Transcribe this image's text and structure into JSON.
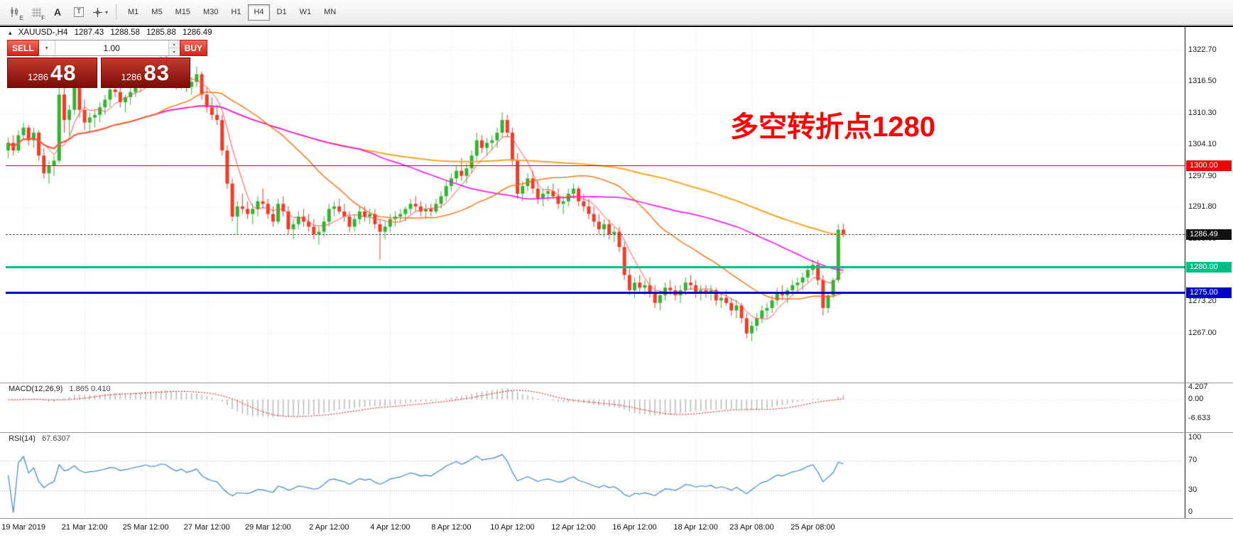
{
  "toolbar": {
    "icons": [
      "candlestick-chart",
      "grid",
      "text-annotation",
      "text-box",
      "crosshair-tool"
    ],
    "icon_labels": {
      "chart_sub": "E",
      "grid_sub": "F",
      "text_tool": "A",
      "textbox_tool": "T"
    },
    "timeframes": [
      "M1",
      "M5",
      "M15",
      "M30",
      "H1",
      "H4",
      "D1",
      "W1",
      "MN"
    ],
    "active_timeframe": "H4"
  },
  "glyphs": {
    "collapse_arrow": "▴",
    "dropdown_caret": "▾",
    "spin_up": "▴",
    "spin_down": "▾"
  },
  "chart_header": {
    "symbol": "XAUUSD-,H4",
    "open": "1287.43",
    "high": "1288.58",
    "low": "1285.88",
    "close": "1286.49"
  },
  "trade_panel": {
    "sell_label": "SELL",
    "buy_label": "BUY",
    "volume": "1.00",
    "sell_price": {
      "main": "1286",
      "pips": "48"
    },
    "buy_price": {
      "main": "1286",
      "pips": "83"
    }
  },
  "annotation": {
    "text": "多空转折点1280",
    "color": "#ff0000"
  },
  "price_axis": {
    "ticks": [
      "1322.70",
      "1316.50",
      "1310.30",
      "1304.10",
      "1297.90",
      "1291.80",
      "1285.60",
      "1279.40",
      "1273.20",
      "1267.00"
    ]
  },
  "current_price": {
    "label": "1286.49",
    "value": 1286.49
  },
  "hlines": [
    {
      "label": "1300.00",
      "value": 1300.0,
      "color": "#f00000",
      "thickness": 1,
      "markers": false
    },
    {
      "label": "1280.00",
      "value": 1280.0,
      "color": "#00bd87",
      "thickness": 3,
      "markers": true
    },
    {
      "label": "1275.00",
      "value": 1275.0,
      "color": "#0000c8",
      "thickness": 3,
      "markers": true
    }
  ],
  "time_axis": {
    "labels": [
      {
        "text": "19 Mar 2019",
        "bar": 3
      },
      {
        "text": "21 Mar 12:00",
        "bar": 15
      },
      {
        "text": "25 Mar 12:00",
        "bar": 27
      },
      {
        "text": "27 Mar 12:00",
        "bar": 39
      },
      {
        "text": "29 Mar 12:00",
        "bar": 51
      },
      {
        "text": "2 Apr 12:00",
        "bar": 63
      },
      {
        "text": "4 Apr 12:00",
        "bar": 75
      },
      {
        "text": "8 Apr 12:00",
        "bar": 87
      },
      {
        "text": "10 Apr 12:00",
        "bar": 99
      },
      {
        "text": "12 Apr 12:00",
        "bar": 111
      },
      {
        "text": "16 Apr 12:00",
        "bar": 123
      },
      {
        "text": "18 Apr 12:00",
        "bar": 135
      },
      {
        "text": "23 Apr 08:00",
        "bar": 146
      },
      {
        "text": "25 Apr 08:00",
        "bar": 158
      }
    ]
  },
  "macd_panel": {
    "name": "MACD(12,26,9)",
    "values": "1.865 0.410",
    "axis": [
      "4.207",
      "0.00",
      "-6.633"
    ]
  },
  "rsi_panel": {
    "name": "RSI(14)",
    "value": "67.6307",
    "axis": [
      "100",
      "70",
      "30",
      "0"
    ],
    "levels": [
      70,
      30
    ]
  },
  "chart_data": {
    "type": "candlestick",
    "symbol": "XAUUSD-",
    "timeframe": "H4",
    "title": "XAUUSD- H4 candlestick chart with MACD(12,26,9) and RSI(14)",
    "y_axis": {
      "min": 1258,
      "max": 1327,
      "tick_step": 6.2
    },
    "colors": {
      "up": "#32b332",
      "down": "#f23b28"
    },
    "overlays": [
      {
        "name": "ma-slowest",
        "type": "sma",
        "period": 120,
        "color": "#f5a623",
        "width": 2
      },
      {
        "name": "ma-slow",
        "type": "sma",
        "period": 60,
        "color": "#ff00ff",
        "width": 1.5
      },
      {
        "name": "ma-mid",
        "type": "sma",
        "period": 30,
        "color": "#ff6600",
        "width": 1.3
      },
      {
        "name": "ma-fast",
        "type": "sma",
        "period": 6,
        "color": "#ff4f4f",
        "width": 1
      }
    ],
    "indicators": [
      {
        "name": "MACD",
        "params": [
          12,
          26,
          9
        ],
        "display": "1.865 0.410"
      },
      {
        "name": "RSI",
        "params": [
          14
        ],
        "display": "67.6307"
      }
    ],
    "candles": [
      [
        1303.0,
        1305.5,
        1301.5,
        1304.5
      ],
      [
        1304.5,
        1306.0,
        1302.0,
        1303.0
      ],
      [
        1303.0,
        1307.0,
        1302.5,
        1306.0
      ],
      [
        1306.0,
        1308.5,
        1305.0,
        1307.5
      ],
      [
        1307.5,
        1308.0,
        1304.0,
        1305.0
      ],
      [
        1305.0,
        1307.5,
        1303.5,
        1306.5
      ],
      [
        1306.5,
        1307.0,
        1301.0,
        1302.0
      ],
      [
        1302.0,
        1303.5,
        1297.5,
        1298.5
      ],
      [
        1298.5,
        1301.0,
        1296.5,
        1300.0
      ],
      [
        1300.0,
        1302.0,
        1298.0,
        1301.0
      ],
      [
        1301.0,
        1320.5,
        1300.5,
        1314.0
      ],
      [
        1314.0,
        1316.5,
        1306.5,
        1309.0
      ],
      [
        1309.0,
        1312.0,
        1306.0,
        1311.0
      ],
      [
        1311.0,
        1318.5,
        1310.0,
        1316.0
      ],
      [
        1316.0,
        1317.0,
        1309.5,
        1311.0
      ],
      [
        1311.0,
        1313.0,
        1307.0,
        1308.5
      ],
      [
        1308.5,
        1310.5,
        1306.5,
        1309.5
      ],
      [
        1309.5,
        1311.0,
        1307.5,
        1310.0
      ],
      [
        1310.0,
        1312.5,
        1308.5,
        1311.5
      ],
      [
        1311.5,
        1314.0,
        1310.0,
        1313.0
      ],
      [
        1313.0,
        1316.5,
        1311.5,
        1315.0
      ],
      [
        1315.0,
        1319.5,
        1313.5,
        1314.5
      ],
      [
        1314.5,
        1316.0,
        1311.5,
        1312.5
      ],
      [
        1312.5,
        1314.0,
        1310.5,
        1313.5
      ],
      [
        1313.5,
        1315.5,
        1312.0,
        1314.5
      ],
      [
        1314.5,
        1317.0,
        1313.5,
        1316.0
      ],
      [
        1316.0,
        1318.0,
        1314.5,
        1317.0
      ],
      [
        1317.0,
        1319.5,
        1316.0,
        1318.5
      ],
      [
        1318.5,
        1320.0,
        1316.5,
        1317.5
      ],
      [
        1317.5,
        1319.0,
        1316.0,
        1318.0
      ],
      [
        1318.0,
        1321.5,
        1317.0,
        1320.0
      ],
      [
        1320.0,
        1322.5,
        1318.5,
        1319.5
      ],
      [
        1319.5,
        1321.0,
        1316.5,
        1317.5
      ],
      [
        1317.5,
        1319.0,
        1315.0,
        1316.0
      ],
      [
        1316.0,
        1318.5,
        1315.0,
        1317.5
      ],
      [
        1317.5,
        1318.5,
        1314.5,
        1315.5
      ],
      [
        1315.5,
        1317.5,
        1314.0,
        1316.5
      ],
      [
        1316.5,
        1319.5,
        1315.5,
        1318.0
      ],
      [
        1318.0,
        1318.5,
        1313.0,
        1314.0
      ],
      [
        1314.0,
        1315.5,
        1310.5,
        1311.5
      ],
      [
        1311.5,
        1313.5,
        1309.0,
        1310.0
      ],
      [
        1310.0,
        1312.0,
        1308.0,
        1309.0
      ],
      [
        1309.0,
        1310.0,
        1302.0,
        1303.0
      ],
      [
        1303.0,
        1304.0,
        1295.5,
        1296.5
      ],
      [
        1296.5,
        1297.5,
        1289.0,
        1290.0
      ],
      [
        1290.0,
        1293.0,
        1286.5,
        1292.0
      ],
      [
        1292.0,
        1294.5,
        1290.5,
        1291.5
      ],
      [
        1291.5,
        1293.0,
        1289.5,
        1290.5
      ],
      [
        1290.5,
        1292.5,
        1288.5,
        1291.5
      ],
      [
        1291.5,
        1294.0,
        1290.0,
        1293.0
      ],
      [
        1293.0,
        1295.5,
        1291.5,
        1292.5
      ],
      [
        1292.5,
        1293.5,
        1289.5,
        1290.5
      ],
      [
        1290.5,
        1292.0,
        1288.0,
        1289.0
      ],
      [
        1289.0,
        1293.5,
        1288.5,
        1292.5
      ],
      [
        1292.5,
        1294.0,
        1290.0,
        1291.0
      ],
      [
        1291.0,
        1292.0,
        1286.5,
        1287.5
      ],
      [
        1287.5,
        1289.5,
        1285.5,
        1288.5
      ],
      [
        1288.5,
        1291.0,
        1287.5,
        1290.0
      ],
      [
        1290.0,
        1291.5,
        1288.0,
        1289.0
      ],
      [
        1289.0,
        1290.5,
        1287.0,
        1288.0
      ],
      [
        1288.0,
        1289.5,
        1285.5,
        1286.5
      ],
      [
        1286.5,
        1288.0,
        1284.5,
        1287.0
      ],
      [
        1287.0,
        1290.0,
        1286.0,
        1289.0
      ],
      [
        1289.0,
        1292.5,
        1288.0,
        1291.5
      ],
      [
        1291.5,
        1293.0,
        1290.0,
        1292.0
      ],
      [
        1292.0,
        1293.5,
        1290.5,
        1291.0
      ],
      [
        1291.0,
        1292.5,
        1289.0,
        1290.0
      ],
      [
        1290.0,
        1291.0,
        1287.0,
        1288.0
      ],
      [
        1288.0,
        1290.5,
        1287.0,
        1289.5
      ],
      [
        1289.5,
        1292.0,
        1288.5,
        1291.0
      ],
      [
        1291.0,
        1292.0,
        1289.0,
        1290.0
      ],
      [
        1290.0,
        1291.5,
        1288.5,
        1290.5
      ],
      [
        1290.5,
        1291.5,
        1287.5,
        1288.5
      ],
      [
        1288.5,
        1289.5,
        1281.5,
        1287.0
      ],
      [
        1287.0,
        1289.0,
        1285.5,
        1288.0
      ],
      [
        1288.0,
        1290.5,
        1287.0,
        1289.5
      ],
      [
        1289.5,
        1291.0,
        1288.0,
        1290.0
      ],
      [
        1290.0,
        1291.5,
        1289.0,
        1290.5
      ],
      [
        1290.5,
        1292.0,
        1289.0,
        1291.5
      ],
      [
        1291.5,
        1293.5,
        1290.5,
        1292.5
      ],
      [
        1292.5,
        1294.0,
        1291.0,
        1292.0
      ],
      [
        1292.0,
        1293.0,
        1290.0,
        1291.0
      ],
      [
        1291.0,
        1292.5,
        1289.5,
        1291.5
      ],
      [
        1291.5,
        1292.5,
        1290.0,
        1291.0
      ],
      [
        1291.0,
        1293.5,
        1290.5,
        1292.5
      ],
      [
        1292.5,
        1295.0,
        1291.5,
        1294.0
      ],
      [
        1294.0,
        1297.0,
        1293.0,
        1296.0
      ],
      [
        1296.0,
        1298.5,
        1295.0,
        1297.5
      ],
      [
        1297.5,
        1300.0,
        1296.5,
        1299.0
      ],
      [
        1299.0,
        1301.5,
        1297.0,
        1298.0
      ],
      [
        1298.0,
        1300.5,
        1296.5,
        1299.5
      ],
      [
        1299.5,
        1303.0,
        1298.5,
        1302.0
      ],
      [
        1302.0,
        1306.5,
        1301.0,
        1305.0
      ],
      [
        1305.0,
        1306.0,
        1302.5,
        1303.5
      ],
      [
        1303.5,
        1305.5,
        1302.0,
        1304.5
      ],
      [
        1304.5,
        1306.0,
        1303.0,
        1305.0
      ],
      [
        1305.0,
        1307.5,
        1303.5,
        1306.5
      ],
      [
        1306.5,
        1310.5,
        1305.5,
        1309.0
      ],
      [
        1309.0,
        1310.0,
        1305.5,
        1306.5
      ],
      [
        1306.5,
        1307.5,
        1300.0,
        1301.0
      ],
      [
        1301.0,
        1302.5,
        1293.5,
        1294.5
      ],
      [
        1294.5,
        1297.0,
        1293.0,
        1296.0
      ],
      [
        1296.0,
        1298.5,
        1295.0,
        1297.5
      ],
      [
        1297.5,
        1299.0,
        1294.5,
        1295.5
      ],
      [
        1295.5,
        1297.0,
        1292.5,
        1293.5
      ],
      [
        1293.5,
        1295.5,
        1292.0,
        1294.5
      ],
      [
        1294.5,
        1296.0,
        1293.0,
        1295.0
      ],
      [
        1295.0,
        1296.5,
        1293.5,
        1294.0
      ],
      [
        1294.0,
        1295.5,
        1291.5,
        1292.5
      ],
      [
        1292.5,
        1294.0,
        1290.5,
        1293.0
      ],
      [
        1293.0,
        1295.5,
        1292.0,
        1294.5
      ],
      [
        1294.5,
        1296.5,
        1293.5,
        1295.5
      ],
      [
        1295.5,
        1296.0,
        1292.0,
        1293.0
      ],
      [
        1293.0,
        1294.5,
        1291.0,
        1292.0
      ],
      [
        1292.0,
        1293.5,
        1289.5,
        1290.5
      ],
      [
        1290.5,
        1292.0,
        1288.0,
        1289.0
      ],
      [
        1289.0,
        1290.5,
        1286.5,
        1287.5
      ],
      [
        1287.5,
        1289.5,
        1286.0,
        1288.5
      ],
      [
        1288.5,
        1289.5,
        1285.5,
        1286.5
      ],
      [
        1286.5,
        1288.0,
        1285.0,
        1287.0
      ],
      [
        1287.0,
        1288.0,
        1283.0,
        1284.0
      ],
      [
        1284.0,
        1285.0,
        1277.5,
        1278.5
      ],
      [
        1278.5,
        1280.0,
        1274.5,
        1275.5
      ],
      [
        1275.5,
        1278.0,
        1274.0,
        1277.0
      ],
      [
        1277.0,
        1278.5,
        1275.0,
        1276.0
      ],
      [
        1276.0,
        1277.5,
        1274.5,
        1276.5
      ],
      [
        1276.5,
        1278.0,
        1274.0,
        1275.0
      ],
      [
        1275.0,
        1276.5,
        1272.0,
        1273.0
      ],
      [
        1273.0,
        1275.5,
        1271.5,
        1274.5
      ],
      [
        1274.5,
        1277.0,
        1273.5,
        1276.0
      ],
      [
        1276.0,
        1277.5,
        1274.5,
        1275.5
      ],
      [
        1275.5,
        1276.5,
        1273.5,
        1274.5
      ],
      [
        1274.5,
        1276.5,
        1273.0,
        1275.5
      ],
      [
        1275.5,
        1278.0,
        1274.5,
        1277.0
      ],
      [
        1277.0,
        1278.5,
        1275.5,
        1276.5
      ],
      [
        1276.5,
        1277.5,
        1274.0,
        1275.0
      ],
      [
        1275.0,
        1276.5,
        1273.5,
        1275.5
      ],
      [
        1275.5,
        1276.5,
        1274.0,
        1275.0
      ],
      [
        1275.0,
        1276.5,
        1273.5,
        1275.5
      ],
      [
        1275.5,
        1276.0,
        1272.5,
        1273.5
      ],
      [
        1273.5,
        1275.0,
        1272.0,
        1274.0
      ],
      [
        1274.0,
        1275.5,
        1272.5,
        1273.0
      ],
      [
        1273.0,
        1274.0,
        1270.5,
        1271.5
      ],
      [
        1271.5,
        1273.5,
        1270.0,
        1272.5
      ],
      [
        1272.5,
        1273.0,
        1269.0,
        1270.0
      ],
      [
        1270.0,
        1271.0,
        1266.0,
        1267.0
      ],
      [
        1267.0,
        1269.5,
        1265.5,
        1268.5
      ],
      [
        1268.5,
        1271.0,
        1267.5,
        1270.0
      ],
      [
        1270.0,
        1272.5,
        1269.0,
        1271.5
      ],
      [
        1271.5,
        1273.0,
        1270.0,
        1272.0
      ],
      [
        1272.0,
        1274.5,
        1271.0,
        1273.5
      ],
      [
        1273.5,
        1276.0,
        1272.5,
        1275.0
      ],
      [
        1275.0,
        1276.5,
        1273.5,
        1274.5
      ],
      [
        1274.5,
        1276.0,
        1273.0,
        1275.5
      ],
      [
        1275.5,
        1277.5,
        1274.5,
        1276.5
      ],
      [
        1276.5,
        1278.0,
        1275.0,
        1277.0
      ],
      [
        1277.0,
        1279.0,
        1275.5,
        1278.0
      ],
      [
        1278.0,
        1280.5,
        1277.0,
        1279.5
      ],
      [
        1279.5,
        1281.5,
        1278.5,
        1280.5
      ],
      [
        1280.5,
        1281.5,
        1276.5,
        1277.5
      ],
      [
        1277.5,
        1278.5,
        1270.5,
        1272.0
      ],
      [
        1272.0,
        1275.0,
        1271.0,
        1274.5
      ],
      [
        1274.5,
        1278.0,
        1274.0,
        1277.5
      ],
      [
        1277.5,
        1288.5,
        1277.0,
        1287.43
      ],
      [
        1287.43,
        1288.58,
        1285.88,
        1286.49
      ]
    ]
  }
}
